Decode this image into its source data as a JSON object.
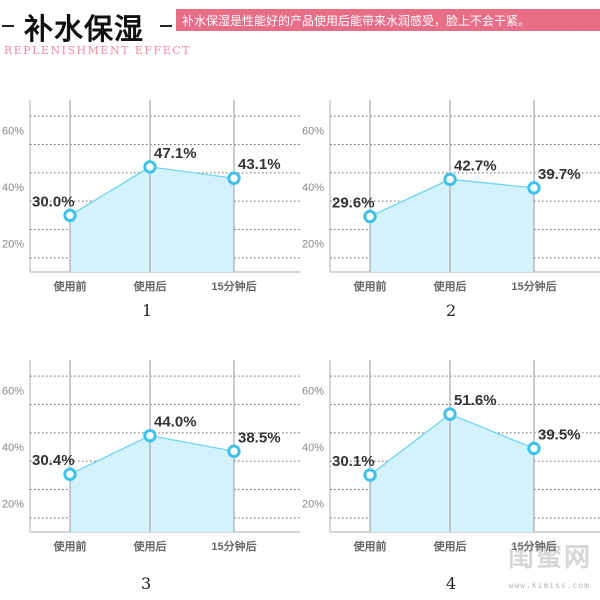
{
  "header": {
    "title": "补水保湿",
    "banner_text": "补水保湿是性能好的产品使用后能带来水润感受，脸上不会干紧。",
    "subtitle": "REPLENISHMENT EFFECT"
  },
  "colors": {
    "accent_pink": "#e86e87",
    "area_fill": "#d4f2fb",
    "line": "#6fd4ef",
    "marker_stroke": "#3ec2ec",
    "grid_dotted": "#666666"
  },
  "watermark": {
    "brand": "闺蜜网",
    "url": "www.kimiss.com"
  },
  "chart_data": [
    {
      "type": "area",
      "label": "1",
      "categories": [
        "使用前",
        "使用后",
        "15分钟后"
      ],
      "values": [
        30.0,
        47.1,
        43.1
      ],
      "data_labels": [
        "30.0%",
        "47.1%",
        "43.1%"
      ],
      "y_ticks": [
        "20%",
        "40%",
        "60%"
      ],
      "ylim": [
        10,
        70
      ],
      "grid": true
    },
    {
      "type": "area",
      "label": "2",
      "categories": [
        "使用前",
        "使用后",
        "15分钟后"
      ],
      "values": [
        29.6,
        42.7,
        39.7
      ],
      "data_labels": [
        "29.6%",
        "42.7%",
        "39.7%"
      ],
      "y_ticks": [
        "20%",
        "40%",
        "60%"
      ],
      "ylim": [
        10,
        70
      ],
      "grid": true
    },
    {
      "type": "area",
      "label": "3",
      "categories": [
        "使用前",
        "使用后",
        "15分钟后"
      ],
      "values": [
        30.4,
        44.0,
        38.5
      ],
      "data_labels": [
        "30.4%",
        "44.0%",
        "38.5%"
      ],
      "y_ticks": [
        "20%",
        "40%",
        "60%"
      ],
      "ylim": [
        10,
        70
      ],
      "grid": true
    },
    {
      "type": "area",
      "label": "4",
      "categories": [
        "使用前",
        "使用后",
        "15分钟后"
      ],
      "values": [
        30.1,
        51.6,
        39.5
      ],
      "data_labels": [
        "30.1%",
        "51.6%",
        "39.5%"
      ],
      "y_ticks": [
        "20%",
        "40%",
        "60%"
      ],
      "ylim": [
        10,
        70
      ],
      "grid": true
    }
  ]
}
